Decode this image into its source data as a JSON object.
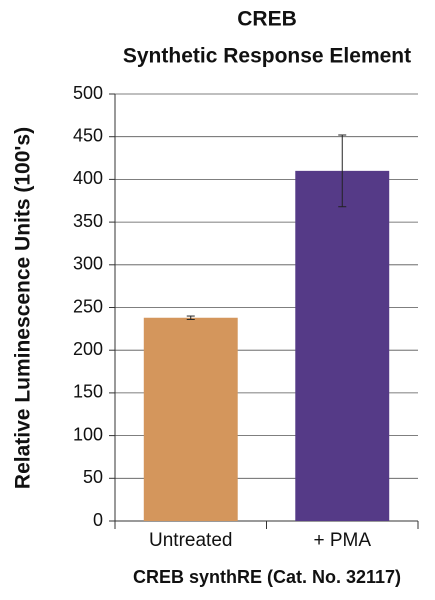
{
  "chart_data": {
    "type": "bar",
    "title": "CREB",
    "subtitle": "Synthetic Response Element",
    "y_label": "Relative Luminescence Units (100's)",
    "x_label": "CREB synthRE (Cat. No. 32117)",
    "categories": [
      "Untreated",
      "+ PMA"
    ],
    "values": [
      238,
      410
    ],
    "errors": [
      2,
      42
    ],
    "colors": [
      "#d4965c",
      "#553a87"
    ],
    "ylim": [
      0,
      500
    ],
    "yticks": [
      0,
      50,
      100,
      150,
      200,
      250,
      300,
      350,
      400,
      450,
      500
    ],
    "grid": true
  }
}
